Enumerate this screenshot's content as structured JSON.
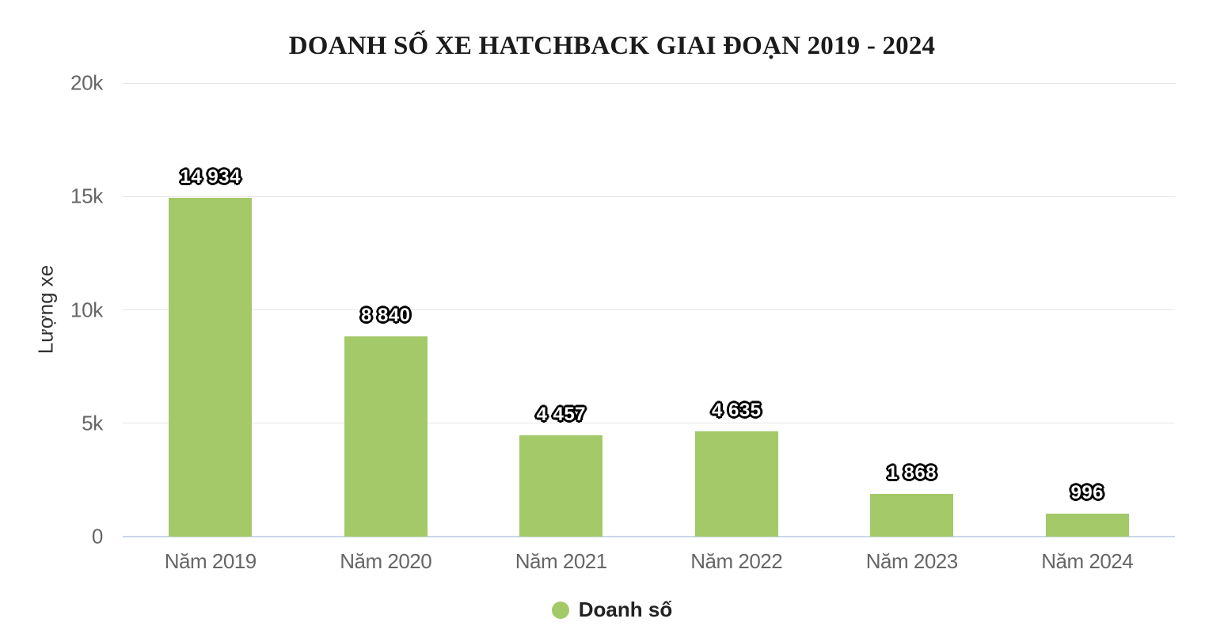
{
  "chart_data": {
    "type": "bar",
    "title": "DOANH SỐ XE HATCHBACK GIAI ĐOẠN 2019 - 2024",
    "categories": [
      "Năm 2019",
      "Năm 2020",
      "Năm 2021",
      "Năm 2022",
      "Năm 2023",
      "Năm 2024"
    ],
    "series": [
      {
        "name": "Doanh số",
        "values": [
          14934,
          8840,
          4457,
          4635,
          1868,
          996
        ],
        "value_labels": [
          "14 934",
          "8 840",
          "4 457",
          "4 635",
          "1 868",
          "996"
        ],
        "color": "#a4c968"
      }
    ],
    "xlabel": "",
    "ylabel": "Lượng xe",
    "ylim": [
      0,
      20000
    ],
    "yticks": [
      {
        "label": "20k",
        "value": 20000
      },
      {
        "label": "15k",
        "value": 15000
      },
      {
        "label": "10k",
        "value": 10000
      },
      {
        "label": "5k",
        "value": 5000
      },
      {
        "label": "0",
        "value": 0
      }
    ],
    "grid": true,
    "legend": {
      "position": "bottom",
      "entries": [
        {
          "label": "Doanh số",
          "color": "#a4c968"
        }
      ]
    }
  },
  "colors": {
    "bar": "#a4c968",
    "grid_line": "#e6e6e6",
    "axis_line": "#ccd6eb",
    "tick_label": "#666666",
    "axis_title": "#333333",
    "chart_title": "#1b1b1b",
    "legend_text": "#222222",
    "data_label_fill": "#ffffff",
    "data_label_outline": "#000000",
    "background": "#ffffff"
  }
}
